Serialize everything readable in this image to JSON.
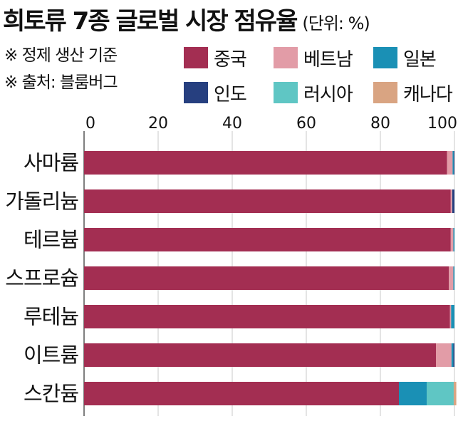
{
  "header": {
    "title": "희토류 7종 글로벌 시장 점유율",
    "unit": "(단위: %)",
    "note1": "※ 정제 생산 기준",
    "note2": "※ 출처: 블룸버그"
  },
  "colors": {
    "china": "#A32E52",
    "vietnam": "#E29CA7",
    "japan": "#1A90B5",
    "india": "#263F7F",
    "russia": "#5FC6C4",
    "canada": "#D9A482"
  },
  "chart_data": {
    "type": "bar",
    "orientation": "horizontal",
    "stacked": true,
    "categories": [
      "사마륨",
      "가돌리늄",
      "테르븀",
      "스프로슘",
      "루테늄",
      "이트륨",
      "스칸듐"
    ],
    "series": [
      {
        "name": "중국",
        "color": "#A32E52",
        "values": [
          98,
          99,
          99,
          98.5,
          98.8,
          95,
          85
        ]
      },
      {
        "name": "베트남",
        "color": "#E29CA7",
        "values": [
          1.5,
          0.4,
          0.7,
          1.2,
          0.3,
          4.2,
          0
        ]
      },
      {
        "name": "일본",
        "color": "#1A90B5",
        "values": [
          0.3,
          0,
          0.3,
          0.3,
          0.9,
          0.5,
          7.5
        ]
      },
      {
        "name": "인도",
        "color": "#263F7F",
        "values": [
          0.2,
          0.6,
          0,
          0,
          0,
          0.3,
          0
        ]
      },
      {
        "name": "러시아",
        "color": "#5FC6C4",
        "values": [
          0,
          0,
          0,
          0,
          0,
          0,
          7.3
        ]
      },
      {
        "name": "캐나다",
        "color": "#D9A482",
        "values": [
          0,
          0,
          0,
          0,
          0,
          0,
          0.7
        ]
      }
    ],
    "xlim": [
      0,
      100
    ],
    "xticks": [
      0,
      20,
      40,
      60,
      80,
      100
    ],
    "legend_position": "top-right",
    "grid": true
  }
}
